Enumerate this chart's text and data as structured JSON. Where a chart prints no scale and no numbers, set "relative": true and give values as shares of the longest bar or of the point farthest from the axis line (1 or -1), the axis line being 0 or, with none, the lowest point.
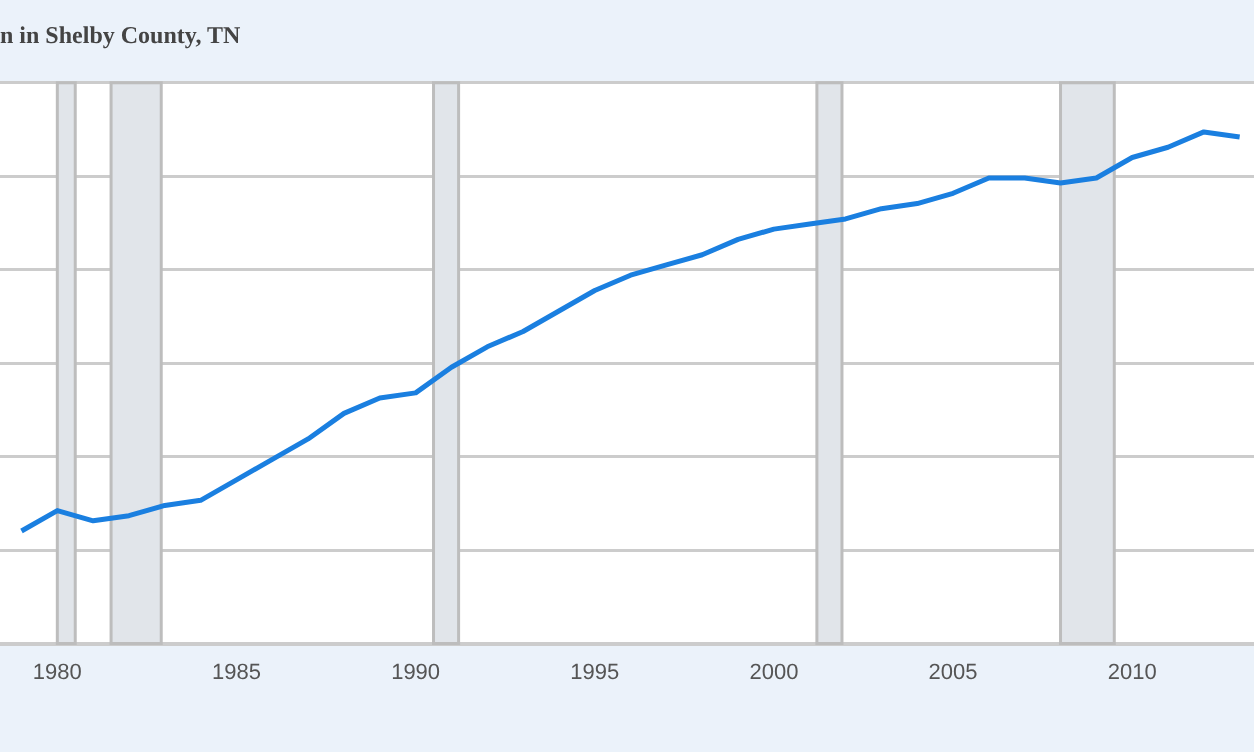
{
  "chart_data": {
    "type": "line",
    "title": "n in Shelby County, TN",
    "relative": true,
    "series": [
      {
        "color": "#1a7fe0",
        "x": [
          1979,
          1980,
          1981,
          1982,
          1983,
          1984,
          1985,
          1986,
          1987,
          1988,
          1989,
          1990,
          1991,
          1992,
          1993,
          1994,
          1995,
          1996,
          1997,
          1998,
          1999,
          2000,
          2001,
          2002,
          2003,
          2004,
          2005,
          2006,
          2007,
          2008,
          2009,
          2010,
          2011,
          2012,
          2013
        ],
        "values": [
          0.22,
          0.26,
          0.24,
          0.25,
          0.27,
          0.28,
          0.32,
          0.36,
          0.4,
          0.45,
          0.48,
          0.49,
          0.54,
          0.58,
          0.61,
          0.65,
          0.69,
          0.72,
          0.74,
          0.76,
          0.79,
          0.81,
          0.82,
          0.83,
          0.85,
          0.86,
          0.88,
          0.91,
          0.91,
          0.9,
          0.91,
          0.95,
          0.97,
          1,
          0.99
        ]
      }
    ],
    "xlim": [
      1978.4,
      2013.4
    ],
    "xticks": [
      1980,
      1985,
      1990,
      1995,
      2000,
      2005,
      2010
    ],
    "bands": [
      {
        "axis": "x",
        "from": 1980.0,
        "to": 1980.5,
        "color": "#e1e5ea"
      },
      {
        "axis": "x",
        "from": 1981.5,
        "to": 1982.9,
        "color": "#e1e5ea"
      },
      {
        "axis": "x",
        "from": 1990.5,
        "to": 1991.2,
        "color": "#e1e5ea"
      },
      {
        "axis": "x",
        "from": 2001.2,
        "to": 2001.9,
        "color": "#e1e5ea"
      },
      {
        "axis": "x",
        "from": 2008.0,
        "to": 2009.5,
        "color": "#e1e5ea"
      }
    ],
    "grid": "y",
    "legend": false,
    "marker": "none",
    "line_style": "solid"
  }
}
